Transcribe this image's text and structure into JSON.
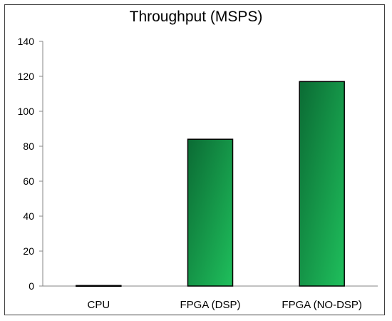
{
  "chart_data": {
    "type": "bar",
    "title": "Throughput (MSPS)",
    "xlabel": "",
    "ylabel": "",
    "categories": [
      "CPU",
      "FPGA (DSP)",
      "FPGA (NO-DSP)"
    ],
    "values": [
      0.3,
      84,
      117
    ],
    "ylim": [
      0,
      140
    ],
    "yticks": [
      0,
      20,
      40,
      60,
      80,
      100,
      120,
      140
    ],
    "grid": false,
    "legend": "none",
    "bar_color_start": "#0b6b34",
    "bar_color_end": "#1fbf5c",
    "bar_border_color": "#000000"
  }
}
